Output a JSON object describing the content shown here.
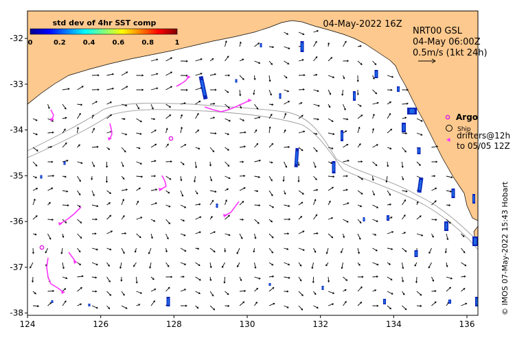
{
  "date_label": "04-May-2022 16Z",
  "current_product": {
    "line1": "NRT00 GSL",
    "line2": "04-May 06:00Z",
    "line3": "0.5m/s (1kt 24h)"
  },
  "colorbar": {
    "title": "std dev of 4hr SST comp",
    "ticks": [
      "0",
      "0.2",
      "0.4",
      "0.6",
      "0.8",
      "1"
    ]
  },
  "legend": {
    "argo": "Argo",
    "ship": "Ship",
    "drifters_line1": "drifters@12h",
    "drifters_line2": "to 05/05 12Z"
  },
  "credit": "© IMOS 07-May-2022 15:43 Hobart",
  "x_ticks": [
    "124",
    "126",
    "128",
    "130",
    "132",
    "134",
    "136"
  ],
  "y_ticks": [
    "-32",
    "-33",
    "-34",
    "-35",
    "-36",
    "-37",
    "-38"
  ],
  "axis": {
    "lon_range": [
      124,
      136.3
    ],
    "lat_range": [
      -38.05,
      -31.4
    ]
  },
  "colors": {
    "land": "#fec98e",
    "argo": "#e020e0",
    "drifter": "#ff33ff"
  }
}
